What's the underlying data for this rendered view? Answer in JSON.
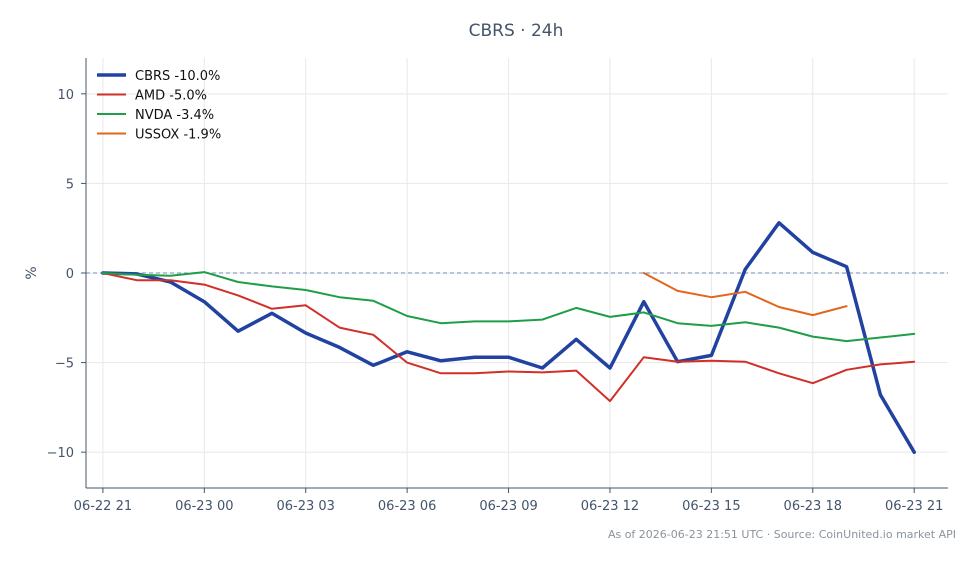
{
  "chart_data": {
    "type": "line",
    "title": "CBRS · 24h",
    "ylabel": "%",
    "xlabel": "",
    "ylim": [
      -12,
      12
    ],
    "xlim": [
      -0.5,
      25.0
    ],
    "y_ticks": [
      10,
      5,
      0,
      -5,
      -10
    ],
    "y_tick_labels": [
      "10",
      "5",
      "0",
      "−5",
      "−10"
    ],
    "x_ticks": [
      0,
      3,
      6,
      9,
      12,
      15,
      18,
      21,
      24
    ],
    "x_tick_labels": [
      "06-22 21",
      "06-23 00",
      "06-23 03",
      "06-23 06",
      "06-23 09",
      "06-23 12",
      "06-23 15",
      "06-23 18",
      "06-23 21"
    ],
    "x_hours_note": "x values are hours, 0 = 06-22 21:00",
    "grid": true,
    "zero_line": true,
    "legend_position": "top-left",
    "series": [
      {
        "name": "CBRS -10.0%",
        "color": "#2142a0",
        "width": 3.5,
        "x": [
          0,
          1,
          2,
          3,
          4,
          5,
          6,
          7,
          8,
          9,
          10,
          11,
          12,
          13,
          14,
          15,
          16,
          17,
          18,
          19,
          20,
          21,
          22,
          23,
          24
        ],
        "y": [
          0.0,
          -0.05,
          -0.5,
          -1.6,
          -3.25,
          -2.25,
          -3.35,
          -4.15,
          -5.15,
          -4.4,
          -4.9,
          -4.7,
          -4.7,
          -5.3,
          -3.7,
          -5.3,
          -1.6,
          -4.95,
          -4.6,
          0.2,
          2.8,
          1.15,
          0.35,
          -6.8,
          -10.0
        ]
      },
      {
        "name": "AMD -5.0%",
        "color": "#d03027",
        "width": 2,
        "x": [
          0,
          1,
          2,
          3,
          4,
          5,
          6,
          7,
          8,
          9,
          10,
          11,
          12,
          13,
          14,
          15,
          16,
          17,
          18,
          19,
          20,
          21,
          22,
          23,
          24
        ],
        "y": [
          0.0,
          -0.4,
          -0.4,
          -0.65,
          -1.25,
          -2.0,
          -1.8,
          -3.05,
          -3.45,
          -5.0,
          -5.6,
          -5.6,
          -5.5,
          -5.55,
          -5.45,
          -7.15,
          -4.7,
          -4.95,
          -4.9,
          -4.95,
          -5.6,
          -6.15,
          -5.4,
          -5.1,
          -4.95
        ]
      },
      {
        "name": "NVDA -3.4%",
        "color": "#1e9e48",
        "width": 2,
        "x": [
          0,
          1,
          2,
          3,
          4,
          5,
          6,
          7,
          8,
          9,
          10,
          11,
          12,
          13,
          14,
          15,
          16,
          17,
          18,
          19,
          20,
          21,
          22,
          23,
          24
        ],
        "y": [
          0.0,
          -0.1,
          -0.15,
          0.05,
          -0.5,
          -0.75,
          -0.95,
          -1.35,
          -1.55,
          -2.4,
          -2.8,
          -2.7,
          -2.7,
          -2.6,
          -1.95,
          -2.45,
          -2.2,
          -2.8,
          -2.95,
          -2.75,
          -3.05,
          -3.55,
          -3.8,
          -3.6,
          -3.4
        ]
      },
      {
        "name": "USSOX -1.9%",
        "color": "#e2661e",
        "width": 2,
        "x": [
          16,
          17,
          18,
          19,
          20,
          21,
          22
        ],
        "y": [
          0.0,
          -1.0,
          -1.35,
          -1.05,
          -1.9,
          -2.35,
          -1.85
        ]
      }
    ]
  },
  "footer": "As of 2026-06-23 21:51 UTC · Source: CoinUnited.io market API"
}
